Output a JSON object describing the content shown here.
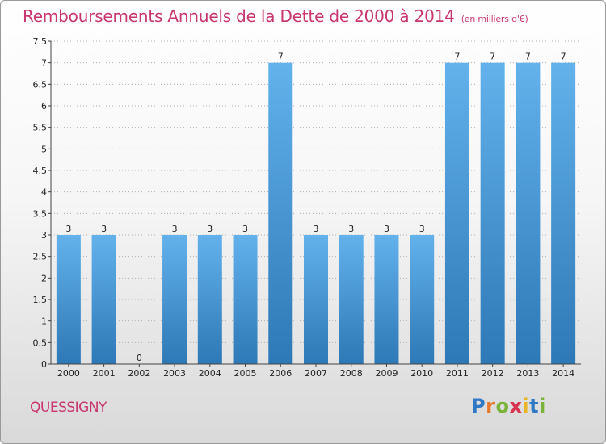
{
  "header": {
    "title": "Remboursements Annuels de la Dette de 2000 à 2014",
    "unit": "(en milliers d'€)"
  },
  "footer": {
    "commune": "QUESSIGNY",
    "logo_text": "Proxiti"
  },
  "colors": {
    "accent": "#c8356f",
    "bar_light": "#63b2ec",
    "bar_dark": "#2d78b6",
    "grid": "#b0b0b0"
  },
  "chart_data": {
    "type": "bar",
    "title": "Remboursements Annuels de la Dette de 2000 à 2014",
    "subtitle": "(en milliers d'€)",
    "xlabel": "",
    "ylabel": "",
    "categories": [
      "2000",
      "2001",
      "2002",
      "2003",
      "2004",
      "2005",
      "2006",
      "2007",
      "2008",
      "2009",
      "2010",
      "2011",
      "2012",
      "2013",
      "2014"
    ],
    "values": [
      3,
      3,
      0,
      3,
      3,
      3,
      7,
      3,
      3,
      3,
      3,
      7,
      7,
      7,
      7
    ],
    "ylim": [
      0,
      7.5
    ],
    "yticks": [
      "0",
      "0.5",
      "1",
      "1.5",
      "2",
      "2.5",
      "3",
      "3.5",
      "4",
      "4.5",
      "5",
      "5.5",
      "6",
      "6.5",
      "7",
      "7.5"
    ],
    "grid": true,
    "data_labels": true
  }
}
